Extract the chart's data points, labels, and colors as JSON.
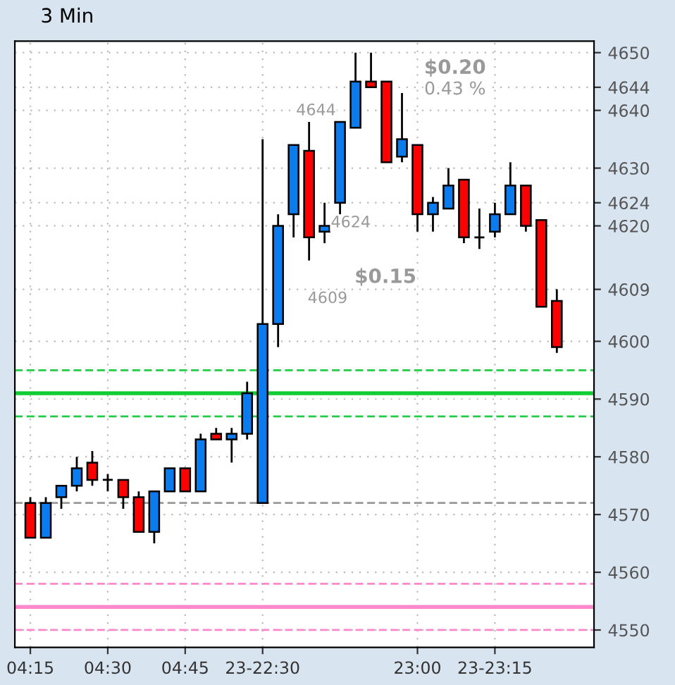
{
  "chart_data": {
    "type": "candlestick",
    "title": "3 Min",
    "categories": [
      "04:15",
      null,
      null,
      null,
      null,
      "04:30",
      null,
      null,
      null,
      null,
      "04:45",
      null,
      null,
      null,
      null,
      "23-22:30",
      null,
      null,
      null,
      null,
      null,
      null,
      null,
      null,
      null,
      "23:00",
      null,
      null,
      null,
      null,
      "23-23:15",
      null,
      null,
      null,
      null
    ],
    "ohlc": [
      [
        4572,
        4573,
        4566,
        4566
      ],
      [
        4566,
        4573,
        4566,
        4572
      ],
      [
        4573,
        4575,
        4571,
        4575
      ],
      [
        4575,
        4580,
        4574,
        4578
      ],
      [
        4579,
        4581,
        4575,
        4576
      ],
      [
        4576,
        4577,
        4574,
        4576
      ],
      [
        4576,
        4576,
        4571,
        4573
      ],
      [
        4573,
        4574,
        4567,
        4567
      ],
      [
        4567,
        4574,
        4565,
        4574
      ],
      [
        4574,
        4578,
        4574,
        4578
      ],
      [
        4578,
        4578,
        4574,
        4574
      ],
      [
        4574,
        4584,
        4574,
        4583
      ],
      [
        4584,
        4585,
        4583,
        4583
      ],
      [
        4583,
        4585,
        4579,
        4584
      ],
      [
        4584,
        4593,
        4583,
        4591
      ],
      [
        4572,
        4635,
        4572,
        4603
      ],
      [
        4603,
        4622,
        4599,
        4620
      ],
      [
        4622,
        4634,
        4618,
        4634
      ],
      [
        4633,
        4638,
        4614,
        4618
      ],
      [
        4619,
        4624,
        4617,
        4620
      ],
      [
        4624,
        4638,
        4622,
        4638
      ],
      [
        4637,
        4650,
        4637,
        4645
      ],
      [
        4645,
        4650,
        4644,
        4644
      ],
      [
        4645,
        4645,
        4631,
        4631
      ],
      [
        4632,
        4643,
        4631,
        4635
      ],
      [
        4634,
        4634,
        4619,
        4622
      ],
      [
        4622,
        4625,
        4619,
        4624
      ],
      [
        4623,
        4630,
        4623,
        4627
      ],
      [
        4628,
        4628,
        4617,
        4618
      ],
      [
        4618,
        4623,
        4616,
        4618
      ],
      [
        4619,
        4624,
        4618,
        4622
      ],
      [
        4622,
        4631,
        4622,
        4627
      ],
      [
        4627,
        4627,
        4619,
        4620
      ],
      [
        4621,
        4621,
        4606,
        4606
      ],
      [
        4607,
        4609,
        4598,
        4599
      ]
    ],
    "colors": [
      "#ff0000",
      "#0a7cf0",
      "#0a7cf0",
      "#0a7cf0",
      "#ff0000",
      "#000000",
      "#ff0000",
      "#ff0000",
      "#0a7cf0",
      "#0a7cf0",
      "#ff0000",
      "#0a7cf0",
      "#ff0000",
      "#0a7cf0",
      "#0a7cf0",
      "#0a7cf0",
      "#0a7cf0",
      "#0a7cf0",
      "#ff0000",
      "#0a7cf0",
      "#0a7cf0",
      "#0a7cf0",
      "#ff0000",
      "#ff0000",
      "#0a7cf0",
      "#ff0000",
      "#0a7cf0",
      "#0a7cf0",
      "#ff0000",
      "#000000",
      "#0a7cf0",
      "#0a7cf0",
      "#ff0000",
      "#ff0000",
      "#ff0000"
    ],
    "ylim": [
      4547,
      4652
    ],
    "yticks": [
      4550,
      4560,
      4570,
      4580,
      4590,
      4600,
      4609,
      4620,
      4624,
      4630,
      4640,
      4644,
      4650
    ],
    "ref_lines": [
      {
        "axis": "y",
        "value": 4595,
        "color": "#22cc44",
        "line_style": "dashed"
      },
      {
        "axis": "y",
        "value": 4591,
        "color": "#11cc33",
        "line_style": "solid"
      },
      {
        "axis": "y",
        "value": 4587,
        "color": "#22cc44",
        "line_style": "dashed"
      },
      {
        "axis": "y",
        "value": 4572,
        "color": "#999999",
        "line_style": "dashed"
      },
      {
        "axis": "y",
        "value": 4558,
        "color": "#ff88cc",
        "line_style": "dashed"
      },
      {
        "axis": "y",
        "value": 4554,
        "color": "#ff88cc",
        "line_style": "solid"
      },
      {
        "axis": "y",
        "value": 4550,
        "color": "#ff88cc",
        "line_style": "dashed"
      }
    ],
    "annotations": [
      "$0.20",
      "0.43 %",
      "4644",
      "4624",
      "$0.15",
      "4609"
    ],
    "grid": true
  }
}
